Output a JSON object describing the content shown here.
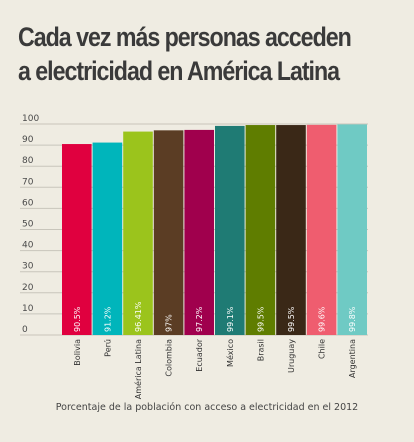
{
  "chart_data": {
    "type": "bar",
    "title": "Cada vez más personas acceden a electricidad en América Latina",
    "caption": "Porcentaje de la población con acceso a electricidad en el 2012",
    "categories": [
      "Bolivia",
      "Perú",
      "América Latina",
      "Colombia",
      "Ecuador",
      "México",
      "Brasil",
      "Uruguay",
      "Chile",
      "Argentina"
    ],
    "values": [
      90.5,
      91.2,
      96.41,
      97,
      97.2,
      99.1,
      99.5,
      99.5,
      99.6,
      99.8
    ],
    "value_labels": [
      "90.5%",
      "91.2%",
      "96.41%",
      "97%",
      "97.2%",
      "99.1%",
      "99.5%",
      "99.5%",
      "99.6%",
      "99.8%"
    ],
    "colors": [
      "#e0003f",
      "#00b5bb",
      "#9bc41c",
      "#5b3d24",
      "#a0004d",
      "#1f7b74",
      "#5f7d00",
      "#3a2817",
      "#ef5d6f",
      "#6fcac4"
    ],
    "yticks": [
      0,
      10,
      20,
      30,
      40,
      50,
      60,
      70,
      80,
      90,
      100
    ],
    "ylim": [
      0,
      100
    ],
    "grid": true,
    "legend": "none"
  }
}
